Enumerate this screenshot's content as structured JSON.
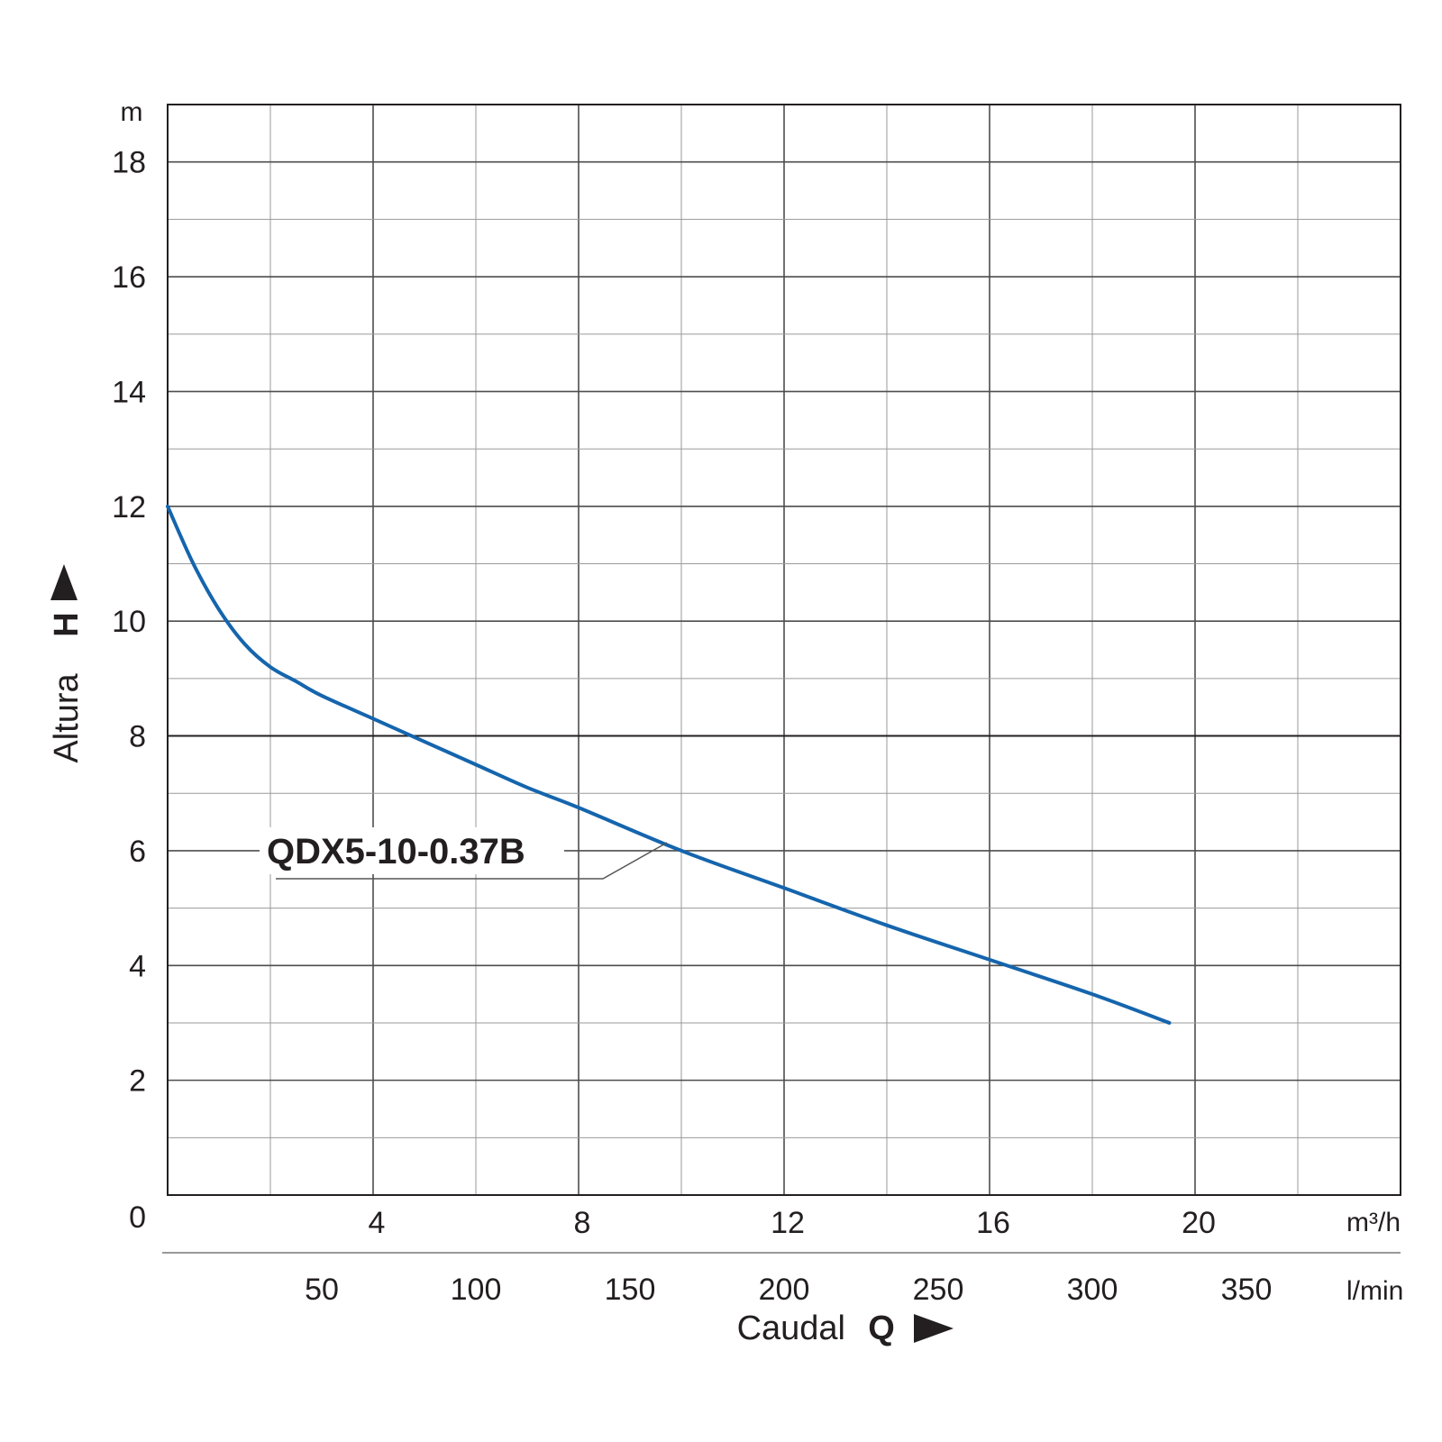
{
  "chart_data": {
    "type": "line",
    "xlabel": "Caudal",
    "x_symbol": "Q",
    "ylabel": "Altura",
    "y_symbol": "H",
    "x_unit": "m³/h",
    "x2_unit": "l/min",
    "y_unit": "m",
    "xlim": [
      0,
      24
    ],
    "ylim": [
      0,
      19
    ],
    "x_ticks": [
      4,
      8,
      12,
      16,
      20
    ],
    "y_ticks": [
      0,
      2,
      4,
      6,
      8,
      10,
      12,
      14,
      16,
      18
    ],
    "x2_ticks": [
      50,
      100,
      150,
      200,
      250,
      300,
      350
    ],
    "grid": true,
    "line_color": "#1565ad",
    "series": [
      {
        "name": "QDX5-10-0.37B",
        "x": [
          0,
          0.5,
          1.0,
          1.5,
          2.0,
          2.5,
          3.0,
          4.0,
          5.0,
          6.0,
          7.0,
          8.0,
          10.0,
          12.0,
          14.0,
          16.0,
          18.0,
          19.5
        ],
        "y": [
          12.0,
          11.0,
          10.2,
          9.6,
          9.2,
          8.95,
          8.7,
          8.3,
          7.9,
          7.5,
          7.1,
          6.75,
          6.0,
          5.35,
          4.7,
          4.1,
          3.5,
          3.0
        ]
      }
    ]
  }
}
